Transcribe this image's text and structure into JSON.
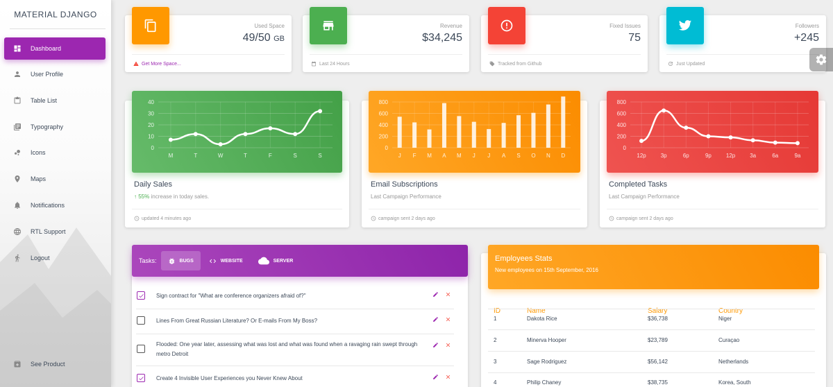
{
  "brand": "MATERIAL DJANGO",
  "nav": [
    {
      "label": "Dashboard",
      "icon": "dashboard-icon"
    },
    {
      "label": "User Profile",
      "icon": "person-icon"
    },
    {
      "label": "Table List",
      "icon": "clipboard-icon"
    },
    {
      "label": "Typography",
      "icon": "library-books-icon"
    },
    {
      "label": "Icons",
      "icon": "bubble-chart-icon"
    },
    {
      "label": "Maps",
      "icon": "location-icon"
    },
    {
      "label": "Notifications",
      "icon": "bell-icon"
    },
    {
      "label": "RTL Support",
      "icon": "language-icon"
    },
    {
      "label": "Logout",
      "icon": "run-icon"
    }
  ],
  "see_product": "See Product",
  "stats": [
    {
      "category": "Used Space",
      "value": "49/50",
      "unit": "GB",
      "footer": "Get More Space...",
      "color": "#ff9800",
      "footer_color": "#9c27b0",
      "icon": "copy-icon",
      "footer_icon": "warning-icon"
    },
    {
      "category": "Revenue",
      "value": "$34,245",
      "unit": "",
      "footer": "Last 24 Hours",
      "color": "#4caf50",
      "icon": "store-icon",
      "footer_icon": "calendar-icon"
    },
    {
      "category": "Fixed Issues",
      "value": "75",
      "unit": "",
      "footer": "Tracked from Github",
      "color": "#f44336",
      "icon": "info-icon",
      "footer_icon": "tag-icon"
    },
    {
      "category": "Followers",
      "value": "+245",
      "unit": "",
      "footer": "Just Updated",
      "color": "#00bcd4",
      "icon": "twitter-icon",
      "footer_icon": "update-icon"
    }
  ],
  "charts": {
    "daily_sales": {
      "title": "Daily Sales",
      "percent": "55%",
      "sub_rest": " increase in today sales.",
      "footer": "updated 4 minutes ago",
      "color": "#4caf50"
    },
    "email_subscriptions": {
      "title": "Email Subscriptions",
      "sub": "Last Campaign Performance",
      "footer": "campaign sent 2 days ago",
      "color": "#ff9800"
    },
    "completed_tasks": {
      "title": "Completed Tasks",
      "sub": "Last Campaign Performance",
      "footer": "campaign sent 2 days ago",
      "color": "#f44336"
    }
  },
  "chart_data": [
    {
      "type": "line",
      "categories": [
        "M",
        "T",
        "W",
        "T",
        "F",
        "S",
        "S"
      ],
      "values": [
        7,
        12,
        3,
        12,
        17,
        12,
        32
      ],
      "yticks": [
        0,
        10,
        20,
        30,
        40
      ],
      "ylim": [
        0,
        40
      ]
    },
    {
      "type": "bar",
      "categories": [
        "J",
        "F",
        "M",
        "A",
        "M",
        "J",
        "J",
        "A",
        "S",
        "O",
        "N",
        "D"
      ],
      "values": [
        542,
        443,
        320,
        780,
        553,
        453,
        326,
        434,
        568,
        610,
        756,
        895
      ],
      "yticks": [
        0,
        200,
        400,
        600,
        800
      ],
      "ylim": [
        0,
        800
      ]
    },
    {
      "type": "line",
      "categories": [
        "12p",
        "3p",
        "6p",
        "9p",
        "12p",
        "3a",
        "6a",
        "9a"
      ],
      "values": [
        120,
        650,
        350,
        200,
        180,
        130,
        90,
        80
      ],
      "yticks": [
        0,
        200,
        400,
        600,
        800
      ],
      "ylim": [
        0,
        800
      ]
    }
  ],
  "tasks": {
    "label": "Tasks:",
    "tabs": [
      {
        "label": "BUGS",
        "icon": "bug-icon",
        "active": true
      },
      {
        "label": "WEBSITE",
        "icon": "code-icon",
        "active": false
      },
      {
        "label": "SERVER",
        "icon": "cloud-icon",
        "active": false
      }
    ],
    "items": [
      {
        "text": "Sign contract for \"What are conference organizers afraid of?\"",
        "checked": true
      },
      {
        "text": "Lines From Great Russian Literature? Or E-mails From My Boss?",
        "checked": false
      },
      {
        "text": "Flooded: One year later, assessing what was lost and what was found when a ravaging rain swept through metro Detroit",
        "checked": false
      },
      {
        "text": "Create 4 Invisible User Experiences you Never Knew About",
        "checked": true
      }
    ]
  },
  "employees": {
    "title": "Employees Stats",
    "subtitle": "New employees on 15th September, 2016",
    "headers": [
      "ID",
      "Name",
      "Salary",
      "Country"
    ],
    "rows": [
      [
        "1",
        "Dakota Rice",
        "$36,738",
        "Niger"
      ],
      [
        "2",
        "Minerva Hooper",
        "$23,789",
        "Curaçao"
      ],
      [
        "3",
        "Sage Rodriguez",
        "$56,142",
        "Netherlands"
      ],
      [
        "4",
        "Philip Chaney",
        "$38,735",
        "Korea, South"
      ]
    ]
  }
}
